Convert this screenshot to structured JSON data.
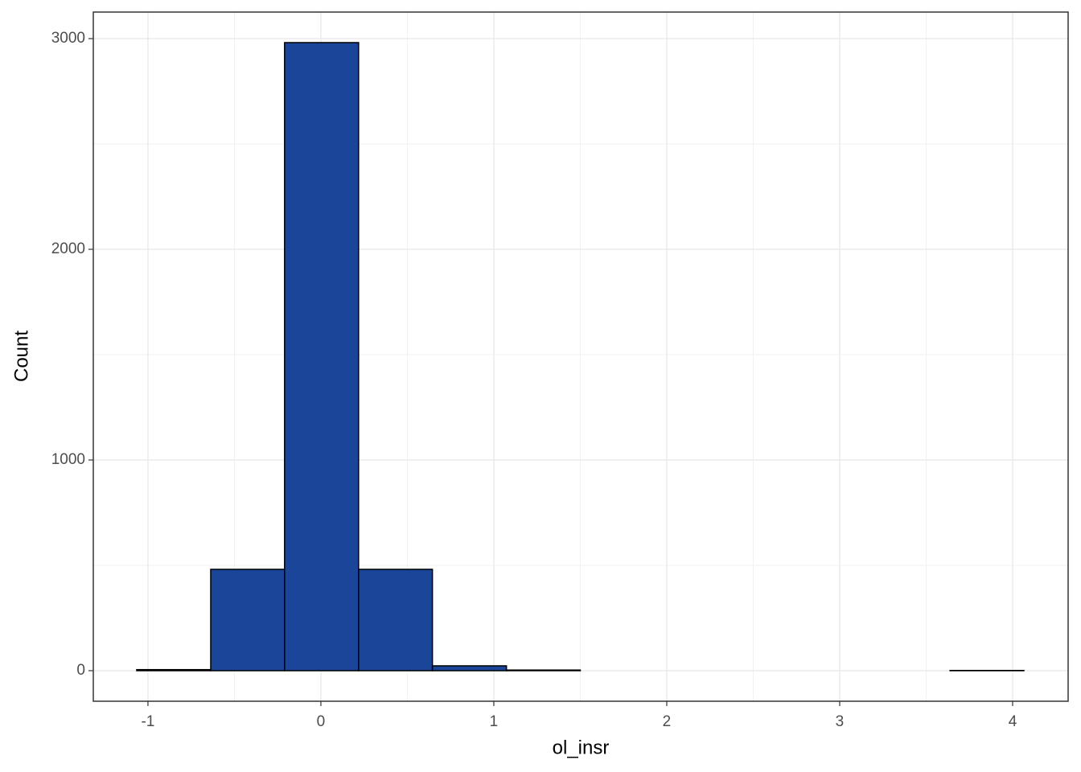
{
  "chart_data": {
    "type": "histogram",
    "x_label": "ol_insr",
    "y_label": "Count",
    "bins": [
      -1.065,
      -0.637,
      -0.21,
      0.218,
      0.645,
      1.073,
      1.5,
      1.928,
      2.355,
      2.783,
      3.21,
      3.638,
      4.065
    ],
    "values": [
      5,
      481,
      2981,
      481,
      23,
      3,
      0,
      0,
      0,
      0,
      0,
      1
    ],
    "color": "#1a4599",
    "edge_color": "#000000",
    "xlim": [
      -1.316,
      4.321
    ],
    "xticks": [
      -1,
      0,
      1,
      2,
      3,
      4
    ],
    "ylim": [
      -145,
      3126
    ],
    "yticks": [
      0,
      1000,
      2000,
      3000
    ],
    "grid": true
  }
}
